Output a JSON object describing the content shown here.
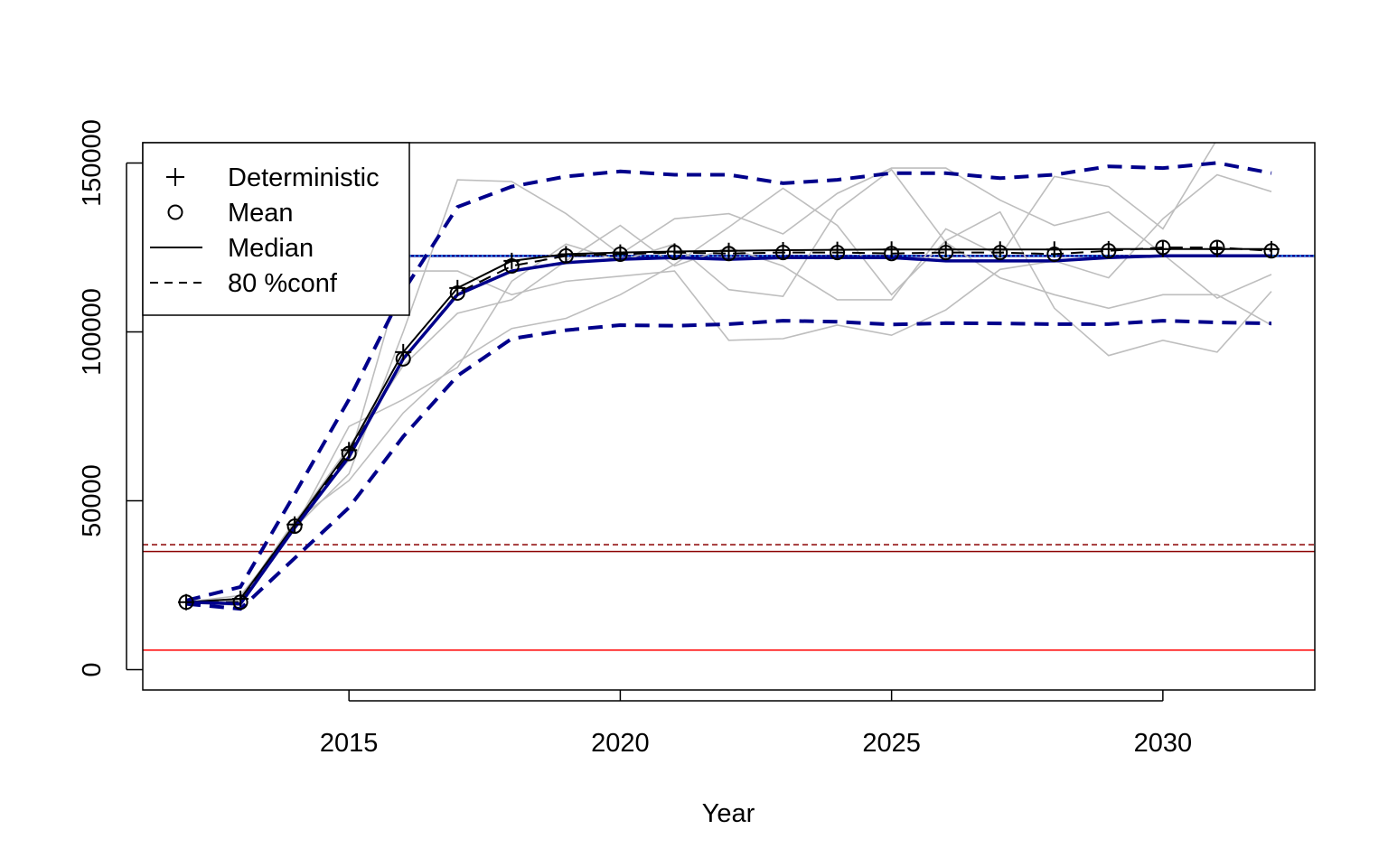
{
  "chart_data": {
    "type": "line",
    "xlabel": "Year",
    "ylabel": "",
    "xlim": [
      2011.2,
      2032.8
    ],
    "ylim": [
      -6000,
      156000
    ],
    "x_ticks": [
      2015,
      2020,
      2025,
      2030
    ],
    "y_ticks": [
      0,
      50000,
      100000,
      150000
    ],
    "grid": false,
    "x": [
      2012,
      2013,
      2014,
      2015,
      2016,
      2017,
      2018,
      2019,
      2020,
      2021,
      2022,
      2023,
      2024,
      2025,
      2026,
      2027,
      2028,
      2029,
      2030,
      2031,
      2032
    ],
    "series": [
      {
        "name": "Deterministic",
        "role": "deterministic",
        "color": "#000000",
        "values": [
          20000,
          21000,
          43000,
          65000,
          94000,
          113000,
          121000,
          123000,
          123500,
          123800,
          124000,
          124200,
          124300,
          124400,
          124400,
          124400,
          124400,
          124500,
          124500,
          124500,
          124500
        ]
      },
      {
        "name": "Mean",
        "role": "mean",
        "color": "#000000",
        "values": [
          20000,
          20000,
          42500,
          64000,
          92000,
          111500,
          119500,
          122500,
          123000,
          123500,
          123200,
          123500,
          123500,
          123200,
          123500,
          123500,
          123000,
          124000,
          125000,
          125000,
          124000
        ]
      },
      {
        "name": "Median",
        "role": "median",
        "color": "#00008b",
        "values": [
          20000,
          19500,
          42000,
          63000,
          92000,
          111000,
          118000,
          120500,
          121500,
          122000,
          121500,
          122000,
          122000,
          122000,
          121000,
          121000,
          121000,
          122000,
          122500,
          122500,
          122500
        ]
      },
      {
        "name": "80 %conf",
        "role": "upper",
        "color": "#00008b",
        "values": [
          20500,
          24500,
          52000,
          80000,
          112000,
          137000,
          143000,
          146000,
          147500,
          146500,
          146500,
          144000,
          145000,
          147000,
          147000,
          145500,
          146500,
          149000,
          148500,
          150000,
          147000
        ]
      },
      {
        "name": "80 %conf",
        "role": "lower",
        "color": "#00008b",
        "values": [
          19500,
          18000,
          33000,
          48000,
          69000,
          87000,
          98000,
          100500,
          102000,
          101800,
          102300,
          103300,
          103000,
          102200,
          102600,
          102500,
          102300,
          102300,
          103300,
          102800,
          102500
        ]
      },
      {
        "name": "",
        "role": "iteration",
        "color": "#bebebe",
        "values": [
          20000,
          19000,
          42000,
          58000,
          100000,
          145000,
          144500,
          135000,
          123000,
          133500,
          135000,
          129000,
          141000,
          148500,
          148500,
          139000,
          131500,
          135500,
          123000,
          110000,
          117000
        ]
      },
      {
        "name": "",
        "role": "iteration",
        "color": "#bebebe",
        "values": [
          20000,
          20500,
          44000,
          56000,
          76000,
          91000,
          101000,
          104000,
          111000,
          120000,
          131000,
          142500,
          131500,
          111000,
          127000,
          135500,
          107000,
          93000,
          97500,
          94000,
          112000
        ]
      },
      {
        "name": "",
        "role": "iteration",
        "color": "#bebebe",
        "values": [
          20000,
          22000,
          42000,
          72000,
          80000,
          89500,
          115000,
          126000,
          121000,
          126000,
          112500,
          110500,
          136000,
          148000,
          126500,
          116000,
          111000,
          107000,
          111000,
          111000,
          102000
        ]
      },
      {
        "name": "",
        "role": "iteration",
        "color": "#bebebe",
        "values": [
          20000,
          21000,
          44000,
          62000,
          118000,
          118000,
          111000,
          115000,
          116500,
          118000,
          97500,
          98000,
          102000,
          99000,
          106500,
          118500,
          121000,
          116000,
          133500,
          146500,
          141500
        ]
      },
      {
        "name": "",
        "role": "iteration",
        "color": "#bebebe",
        "values": [
          20000,
          19500,
          43500,
          66000,
          90000,
          105500,
          109500,
          121000,
          131500,
          119500,
          125000,
          119500,
          109500,
          109500,
          130500,
          122500,
          146000,
          143000,
          130500,
          157000,
          156500
        ]
      }
    ],
    "reference_lines": [
      {
        "y": 122500,
        "color": "#00008b",
        "style": "solid"
      },
      {
        "y": 122500,
        "color": "#1e90ff",
        "style": "dotted"
      },
      {
        "y": 37000,
        "color": "#8b0000",
        "style": "dashed"
      },
      {
        "y": 35000,
        "color": "#8b0000",
        "style": "solid"
      },
      {
        "y": 5800,
        "color": "#ff0000",
        "style": "solid"
      }
    ],
    "legend": {
      "position": "top-left",
      "entries": [
        {
          "label": "Deterministic",
          "symbol": "plus"
        },
        {
          "label": "Mean",
          "symbol": "circle"
        },
        {
          "label": "Median",
          "symbol": "solid-line"
        },
        {
          "label": "80 %conf",
          "symbol": "dashed-line"
        }
      ]
    }
  }
}
